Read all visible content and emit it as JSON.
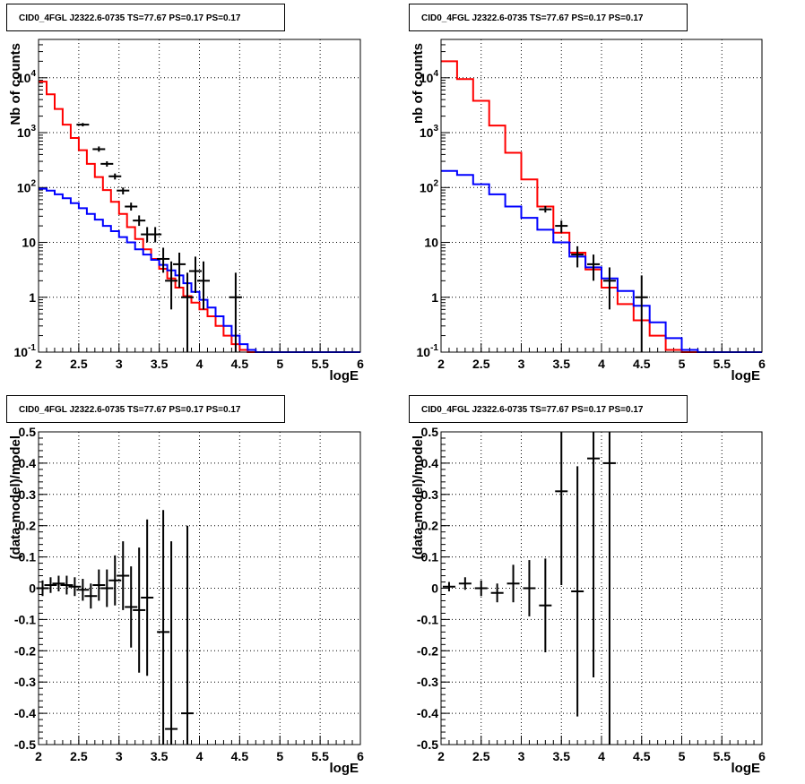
{
  "chart_data": [
    {
      "type": "line",
      "panel_title": "CID0_4FGL J2322.6-0735 TS=77.67 PS=0.17 PS=0.17",
      "xlabel": "logE",
      "ylabel": "Nb of counts",
      "xlim": [
        2,
        6
      ],
      "ylim": [
        0.1,
        50000
      ],
      "yscale": "log",
      "x_ticks": [
        "2",
        "2.5",
        "3",
        "3.5",
        "4",
        "4.5",
        "5",
        "5.5",
        "6"
      ],
      "y_ticks": [
        "10^-1",
        "1",
        "10",
        "10^2",
        "10^3",
        "10^4"
      ],
      "grid": true,
      "bin_edges": [
        2.0,
        2.1,
        2.2,
        2.3,
        2.4,
        2.5,
        2.6,
        2.7,
        2.8,
        2.9,
        3.0,
        3.1,
        3.2,
        3.3,
        3.4,
        3.5,
        3.6,
        3.7,
        3.8,
        3.9,
        4.0,
        4.1,
        4.2,
        4.3,
        4.4,
        4.5,
        4.6,
        4.7,
        4.8,
        4.9,
        5.0,
        5.1,
        5.2,
        5.3,
        5.4,
        5.5,
        5.6,
        5.7,
        5.8,
        5.9,
        6.0
      ],
      "series": [
        {
          "color": "#ff0000",
          "values": [
            8500,
            5000,
            2700,
            1400,
            800,
            480,
            270,
            155,
            90,
            55,
            33,
            19,
            11.5,
            7.5,
            5.0,
            3.3,
            2.2,
            1.5,
            1.05,
            0.8,
            0.6,
            0.45,
            0.3,
            0.2,
            0.14,
            0.11,
            0.1,
            0.1,
            0.1,
            0.1,
            0.1,
            0.1,
            0.1,
            0.1,
            0.1,
            0.1,
            0.1,
            0.1,
            0.1,
            0.1
          ]
        },
        {
          "color": "#0000ff",
          "values": [
            95,
            88,
            75,
            64,
            52,
            42,
            33,
            26,
            20,
            16,
            12.5,
            10,
            7.5,
            6,
            4.8,
            3.9,
            3.1,
            2.5,
            1.8,
            1.25,
            0.9,
            0.65,
            0.45,
            0.3,
            0.2,
            0.14,
            0.11,
            0.1,
            0.1,
            0.1,
            0.1,
            0.1,
            0.1,
            0.1,
            0.1,
            0.1,
            0.1,
            0.1,
            0.1,
            0.1
          ]
        }
      ],
      "data_points": {
        "x": [
          2.55,
          2.75,
          2.85,
          2.95,
          3.05,
          3.15,
          3.25,
          3.35,
          3.45,
          3.55,
          3.65,
          3.75,
          3.85,
          3.95,
          4.05,
          4.45
        ],
        "y": [
          1400,
          500,
          270,
          160,
          88,
          45,
          25,
          14,
          14,
          5,
          2,
          4,
          1,
          3,
          2,
          1
        ],
        "y_low": [
          1300,
          450,
          240,
          140,
          75,
          38,
          20,
          10,
          10,
          2.8,
          0.6,
          1.5,
          0.1,
          1.2,
          0.6,
          0.1
        ],
        "y_high": [
          1500,
          560,
          300,
          180,
          100,
          53,
          31,
          19,
          19,
          8,
          4.5,
          6.5,
          2.8,
          5.5,
          4.5,
          2.8
        ]
      }
    },
    {
      "type": "line",
      "panel_title": "CID0_4FGL J2322.6-0735 TS=77.67 PS=0.17 PS=0.17",
      "xlabel": "logE",
      "ylabel": "nb of counts",
      "xlim": [
        2,
        6
      ],
      "ylim": [
        0.1,
        50000
      ],
      "yscale": "log",
      "x_ticks": [
        "2",
        "2.5",
        "3",
        "3.5",
        "4",
        "4.5",
        "5",
        "5.5",
        "6"
      ],
      "y_ticks": [
        "10^-1",
        "1",
        "10",
        "10^2",
        "10^3",
        "10^4"
      ],
      "grid": true,
      "bin_edges": [
        2.0,
        2.2,
        2.4,
        2.6,
        2.8,
        3.0,
        3.2,
        3.4,
        3.6,
        3.8,
        4.0,
        4.2,
        4.4,
        4.6,
        4.8,
        5.0,
        5.2,
        5.4,
        5.6,
        5.8,
        6.0
      ],
      "series": [
        {
          "color": "#ff0000",
          "values": [
            20000,
            9500,
            3800,
            1350,
            430,
            140,
            45,
            15,
            6.5,
            3.2,
            1.5,
            0.75,
            0.38,
            0.2,
            0.11,
            0.1,
            0.1,
            0.1,
            0.1,
            0.1
          ]
        },
        {
          "color": "#0000ff",
          "values": [
            200,
            170,
            115,
            75,
            45,
            28,
            17,
            10,
            5.5,
            3.5,
            2.2,
            1.3,
            0.7,
            0.35,
            0.18,
            0.11,
            0.1,
            0.1,
            0.1,
            0.1
          ]
        }
      ],
      "data_points": {
        "x": [
          3.3,
          3.5,
          3.7,
          3.9,
          4.1,
          4.5
        ],
        "y": [
          40,
          20,
          6,
          4,
          2,
          1
        ],
        "y_low": [
          35,
          15,
          3.5,
          2,
          0.6,
          0.1
        ],
        "y_high": [
          46,
          25,
          8.5,
          6,
          3.5,
          2.5
        ]
      }
    },
    {
      "type": "scatter",
      "panel_title": "CID0_4FGL J2322.6-0735 TS=77.67 PS=0.17 PS=0.17",
      "xlabel": "logE",
      "ylabel": "(data-model)/model",
      "xlim": [
        2,
        6
      ],
      "ylim": [
        -0.5,
        0.5
      ],
      "x_ticks": [
        "2",
        "2.5",
        "3",
        "3.5",
        "4",
        "4.5",
        "5",
        "5.5",
        "6"
      ],
      "y_ticks": [
        "-0.5",
        "-0.4",
        "-0.3",
        "-0.2",
        "-0.1",
        "0",
        "0.1",
        "0.2",
        "0.3",
        "0.4",
        "0.5"
      ],
      "grid": true,
      "data_points": {
        "x": [
          2.05,
          2.15,
          2.25,
          2.35,
          2.45,
          2.55,
          2.65,
          2.75,
          2.85,
          2.95,
          3.05,
          3.15,
          3.25,
          3.35,
          3.55,
          3.65,
          3.85
        ],
        "y": [
          0.0,
          0.01,
          0.015,
          0.01,
          0.005,
          -0.005,
          -0.025,
          0.01,
          0.0,
          0.025,
          0.04,
          -0.06,
          -0.07,
          -0.03,
          -0.14,
          -0.45,
          -0.4
        ],
        "y_err": [
          0.025,
          0.025,
          0.025,
          0.03,
          0.03,
          0.035,
          0.04,
          0.05,
          0.06,
          0.08,
          0.11,
          0.13,
          0.2,
          0.25,
          0.39,
          0.6,
          0.6
        ]
      }
    },
    {
      "type": "scatter",
      "panel_title": "CID0_4FGL J2322.6-0735 TS=77.67 PS=0.17 PS=0.17",
      "xlabel": "logE",
      "ylabel": "(data-model)/model",
      "xlim": [
        2,
        6
      ],
      "ylim": [
        -0.5,
        0.5
      ],
      "x_ticks": [
        "2",
        "2.5",
        "3",
        "3.5",
        "4",
        "4.5",
        "5",
        "5.5",
        "6"
      ],
      "y_ticks": [
        "-0.5",
        "-0.4",
        "-0.3",
        "-0.2",
        "-0.1",
        "0",
        "0.1",
        "0.2",
        "0.3",
        "0.4",
        "0.5"
      ],
      "grid": true,
      "data_points": {
        "x": [
          2.1,
          2.3,
          2.5,
          2.7,
          2.9,
          3.1,
          3.3,
          3.5,
          3.7,
          3.9,
          4.1
        ],
        "y": [
          0.005,
          0.015,
          0.0,
          -0.015,
          0.015,
          0.0,
          -0.055,
          0.31,
          -0.01,
          0.415,
          0.4
        ],
        "y_err": [
          0.015,
          0.02,
          0.025,
          0.03,
          0.06,
          0.09,
          0.15,
          0.3,
          0.4,
          0.7,
          0.9
        ]
      }
    }
  ]
}
